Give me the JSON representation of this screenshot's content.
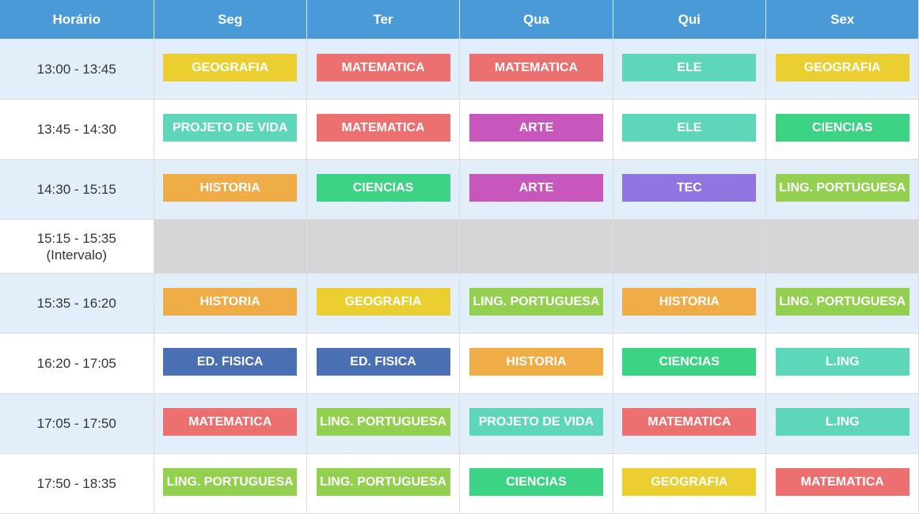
{
  "headers": [
    "Horário",
    "Seg",
    "Ter",
    "Qua",
    "Qui",
    "Sex"
  ],
  "colors": {
    "header": "#4a9ad8",
    "row_alt": "#e3eefb",
    "break": "#d6d6d6",
    "subjects": {
      "GEOGRAFIA": "#ebcf31",
      "MATEMATICA": "#ec7070",
      "ELE": "#5ed6ba",
      "PROJETO DE VIDA": "#5ed6ba",
      "ARTE": "#c757bd",
      "CIENCIAS": "#3dd384",
      "HISTORIA": "#efac47",
      "TEC": "#9175e0",
      "LING. PORTUGUESA": "#93d050",
      "ED. FISICA": "#4a6fb3",
      "L.ING": "#5ed6ba"
    }
  },
  "rows": [
    {
      "time": "13:00 - 13:45",
      "classes": [
        "GEOGRAFIA",
        "MATEMATICA",
        "MATEMATICA",
        "ELE",
        "GEOGRAFIA"
      ]
    },
    {
      "time": "13:45 - 14:30",
      "classes": [
        "PROJETO DE VIDA",
        "MATEMATICA",
        "ARTE",
        "ELE",
        "CIENCIAS"
      ]
    },
    {
      "time": "14:30 - 15:15",
      "classes": [
        "HISTORIA",
        "CIENCIAS",
        "ARTE",
        "TEC",
        "LING. PORTUGUESA"
      ]
    },
    {
      "time": "15:35 - 16:20",
      "classes": [
        "HISTORIA",
        "GEOGRAFIA",
        "LING. PORTUGUESA",
        "HISTORIA",
        "LING. PORTUGUESA"
      ]
    },
    {
      "time": "16:20 - 17:05",
      "classes": [
        "ED. FISICA",
        "ED. FISICA",
        "HISTORIA",
        "CIENCIAS",
        "L.ING"
      ]
    },
    {
      "time": "17:05 - 17:50",
      "classes": [
        "MATEMATICA",
        "LING. PORTUGUESA",
        "PROJETO DE VIDA",
        "MATEMATICA",
        "L.ING"
      ]
    },
    {
      "time": "17:50 - 18:35",
      "classes": [
        "LING. PORTUGUESA",
        "LING. PORTUGUESA",
        "CIENCIAS",
        "GEOGRAFIA",
        "MATEMATICA"
      ]
    }
  ],
  "break": {
    "time": "15:15 - 15:35",
    "label": "(Intervalo)"
  }
}
